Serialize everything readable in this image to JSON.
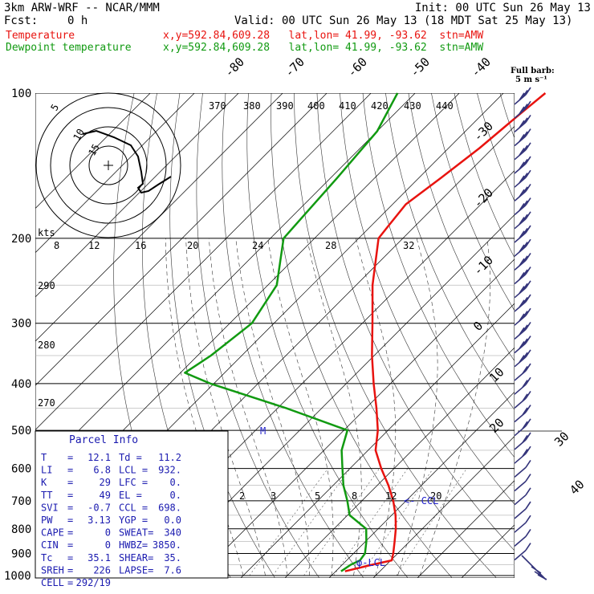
{
  "header": {
    "model": "3km ARW-WRF -- NCAR/MMM",
    "init": "Init: 00 UTC Sun 26 May 13",
    "fcst_label": "Fcst:",
    "fcst_value": "0 h",
    "valid": "Valid: 00 UTC Sun 26 May 13 (18 MDT Sat 25 May 13)",
    "legend": [
      {
        "name": "Temperature",
        "info": "x,y=592.84,609.28   lat,lon= 41.99, -93.62  stn=AMW",
        "color": "#e8130f"
      },
      {
        "name": "Dewpoint temperature",
        "info": "x,y=592.84,609.28   lat,lon= 41.99, -93.62  stn=AMW",
        "color": "#119a11"
      }
    ]
  },
  "barb_key": {
    "line1": "Full barb:",
    "line2": "5 m s⁻¹"
  },
  "parcel": {
    "title": "Parcel Info",
    "rows": [
      [
        "T",
        "=",
        "12.1",
        "Td =",
        "11.2"
      ],
      [
        "LI",
        "=",
        "6.8",
        "LCL =",
        "932."
      ],
      [
        "K",
        "=",
        "29",
        "LFC =",
        "0."
      ],
      [
        "TT",
        "=",
        "49",
        "EL =",
        "0."
      ],
      [
        "SVI",
        "=",
        "-0.7",
        "CCL =",
        "698."
      ],
      [
        "PW",
        "=",
        "3.13",
        "YGP =",
        "0.0"
      ],
      [
        "CAPE",
        "=",
        "0",
        "SWEAT=",
        "340"
      ],
      [
        "CIN",
        "=",
        "0",
        "HWBZ=",
        "3850."
      ],
      [
        "Tc",
        "=",
        "35.1",
        "SHEAR=",
        "35."
      ],
      [
        "SREH",
        "=",
        "226",
        "LAPSE=",
        "7.6"
      ],
      [
        "CELL",
        "=",
        "292/19",
        "",
        ""
      ]
    ]
  },
  "hodograph": {
    "kts_label": "kts",
    "ring_labels": [
      "5",
      "10",
      "15"
    ],
    "speed_ticks": [
      "8",
      "12",
      "16",
      "20",
      "24",
      "28",
      "32"
    ]
  },
  "annotations": {
    "lcl": "LCL",
    "ccl": "CCL",
    "m": "M"
  },
  "chart_data": {
    "type": "line",
    "chart_kind": "skew-T log-p",
    "y_axis": {
      "scale": "log",
      "ticks": [
        100,
        200,
        300,
        400,
        500,
        600,
        700,
        800,
        900,
        1000
      ],
      "range": [
        1000,
        100
      ]
    },
    "isotherm_labels": [
      -80,
      -70,
      -60,
      -50,
      -40,
      -30,
      -20,
      -10,
      0,
      10,
      20,
      30,
      40
    ],
    "theta_e_labels": [
      370,
      380,
      390,
      400,
      410,
      420,
      430,
      440
    ],
    "theta_labels": [
      290,
      280,
      270
    ],
    "mixing_ratio_labels": [
      2,
      3,
      5,
      8,
      12,
      20
    ],
    "series": [
      {
        "name": "Temperature",
        "color": "#e8130f",
        "points": [
          [
            980,
            12.1
          ],
          [
            950,
            16.7
          ],
          [
            930,
            20.2
          ],
          [
            900,
            19.0
          ],
          [
            850,
            16.6
          ],
          [
            800,
            14.0
          ],
          [
            750,
            10.9
          ],
          [
            700,
            7.1
          ],
          [
            650,
            2.5
          ],
          [
            600,
            -2.9
          ],
          [
            550,
            -8.3
          ],
          [
            500,
            -12.3
          ],
          [
            450,
            -17.6
          ],
          [
            400,
            -23.8
          ],
          [
            350,
            -30.5
          ],
          [
            300,
            -37.7
          ],
          [
            250,
            -46.3
          ],
          [
            200,
            -55.5
          ],
          [
            190,
            -56.0
          ],
          [
            170,
            -57.0
          ],
          [
            150,
            -55.0
          ],
          [
            130,
            -53.0
          ],
          [
            110,
            -51.5
          ],
          [
            100,
            -50.5
          ]
        ]
      },
      {
        "name": "Dewpoint temperature",
        "color": "#119a11",
        "points": [
          [
            980,
            11.2
          ],
          [
            950,
            11.9
          ],
          [
            930,
            13.0
          ],
          [
            900,
            12.6
          ],
          [
            850,
            10.2
          ],
          [
            800,
            7.3
          ],
          [
            750,
            0.5
          ],
          [
            700,
            -3.3
          ],
          [
            650,
            -7.7
          ],
          [
            600,
            -11.7
          ],
          [
            550,
            -16.0
          ],
          [
            500,
            -19.2
          ],
          [
            450,
            -38.0
          ],
          [
            400,
            -60.8
          ],
          [
            380,
            -69.0
          ],
          [
            350,
            -67.0
          ],
          [
            300,
            -65.0
          ],
          [
            250,
            -68.0
          ],
          [
            200,
            -77.0
          ],
          [
            150,
            -78.5
          ],
          [
            120,
            -80.0
          ],
          [
            100,
            -84.0
          ]
        ]
      }
    ],
    "grid": true
  }
}
